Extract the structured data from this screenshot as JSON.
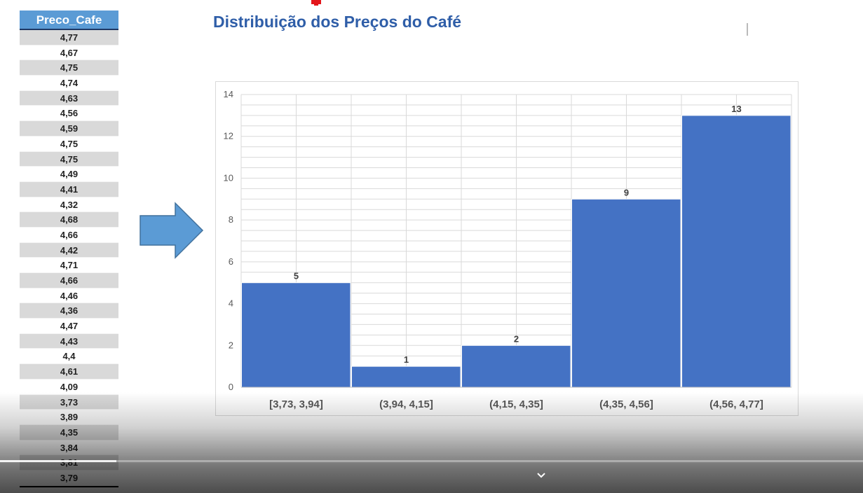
{
  "table": {
    "header": "Preco_Cafe",
    "values": [
      "4,77",
      "4,67",
      "4,75",
      "4,74",
      "4,63",
      "4,56",
      "4,59",
      "4,75",
      "4,75",
      "4,49",
      "4,41",
      "4,32",
      "4,68",
      "4,66",
      "4,42",
      "4,71",
      "4,66",
      "4,46",
      "4,36",
      "4,47",
      "4,43",
      "4,4",
      "4,61",
      "4,09",
      "3,73",
      "3,89",
      "4,35",
      "3,84",
      "3,81",
      "3,79"
    ]
  },
  "arrow": {
    "icon": "right-arrow-icon",
    "color": "#5b9bd5"
  },
  "chart_data": {
    "type": "bar",
    "title": "Distribuição dos Preços do Café",
    "categories": [
      "[3,73, 3,94]",
      "(3,94, 4,15]",
      "(4,15, 4,35]",
      "(4,35, 4,56]",
      "(4,56, 4,77]"
    ],
    "values": [
      5,
      1,
      2,
      9,
      13
    ],
    "data_labels": [
      "5",
      "1",
      "2",
      "9",
      "13"
    ],
    "ylim": [
      0,
      14
    ],
    "yticks": [
      "0",
      "2",
      "4",
      "6",
      "8",
      "10",
      "12",
      "14"
    ],
    "xlabel": "",
    "ylabel": "",
    "grid": true,
    "bar_color": "#4472c4"
  },
  "player": {
    "progress": 0.135,
    "icon": "chevron-down-icon"
  }
}
